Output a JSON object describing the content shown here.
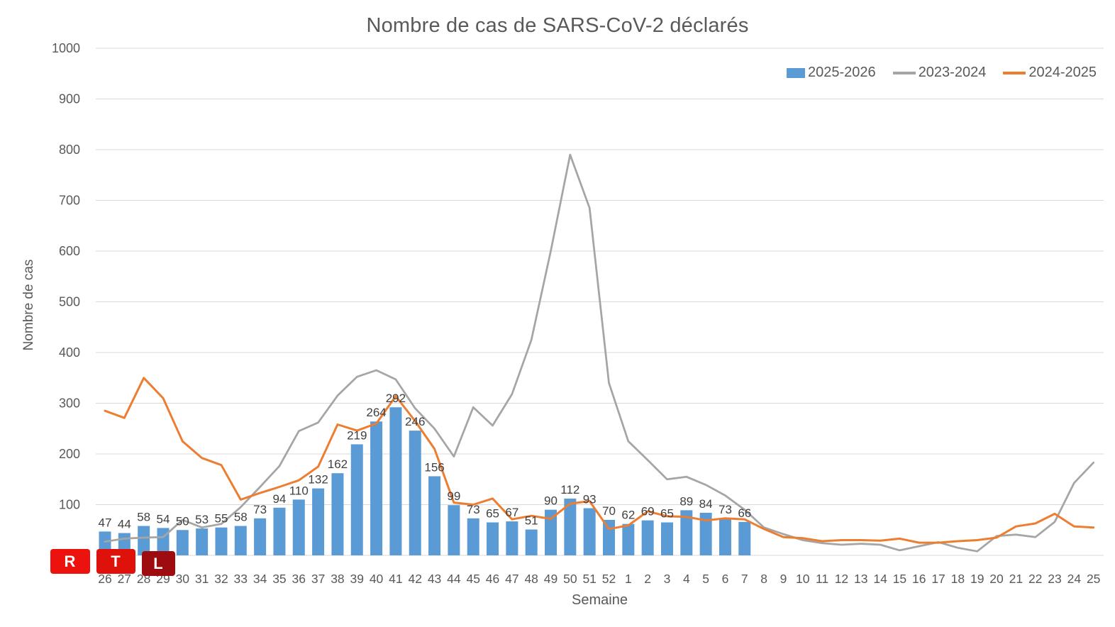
{
  "title": "Nombre de cas de SARS-CoV-2 déclarés",
  "legend": {
    "items": [
      {
        "label": "2025-2026",
        "marker": "bar-swatch",
        "color": "#5B9BD5"
      },
      {
        "label": "2023-2024",
        "marker": "line-swatch",
        "color": "#A5A5A5"
      },
      {
        "label": "2024-2025",
        "marker": "line-swatch",
        "color": "#ED7D31"
      }
    ]
  },
  "logo": {
    "name": "RTL",
    "blocks": [
      {
        "letter": "R",
        "color": "#EC130E"
      },
      {
        "letter": "T",
        "color": "#DF120B"
      },
      {
        "letter": "L",
        "color": "#9E0C10"
      }
    ]
  },
  "colors": {
    "bar": "#5B9BD5",
    "line_2023_2024": "#A5A5A5",
    "line_2024_2025": "#ED7D31",
    "gridline": "#D9D9D9",
    "axis_text": "#595959",
    "data_label": "#404040"
  },
  "chart_data": {
    "type": "bar",
    "subtype": "combo bar + 2 lines",
    "title": "Nombre de cas de SARS-CoV-2 déclarés",
    "xlabel": "Semaine",
    "ylabel": "Nombre de cas",
    "ylim": [
      0,
      1000
    ],
    "yticks": [
      100,
      200,
      300,
      400,
      500,
      600,
      700,
      800,
      900,
      1000
    ],
    "grid": "horizontal",
    "legend_position": "top-right",
    "categories": [
      "26",
      "27",
      "28",
      "29",
      "30",
      "31",
      "32",
      "33",
      "34",
      "35",
      "36",
      "37",
      "38",
      "39",
      "40",
      "41",
      "42",
      "43",
      "44",
      "45",
      "46",
      "47",
      "48",
      "49",
      "50",
      "51",
      "52",
      "1",
      "2",
      "3",
      "4",
      "5",
      "6",
      "7",
      "8",
      "9",
      "10",
      "11",
      "12",
      "13",
      "14",
      "15",
      "16",
      "17",
      "18",
      "19",
      "20",
      "21",
      "22",
      "23",
      "24",
      "25"
    ],
    "series": [
      {
        "name": "2025-2026",
        "type": "bar",
        "color": "#5B9BD5",
        "labels_shown": true,
        "values": [
          47,
          44,
          58,
          54,
          50,
          53,
          55,
          58,
          73,
          94,
          110,
          132,
          162,
          219,
          264,
          292,
          246,
          156,
          99,
          73,
          65,
          67,
          51,
          90,
          112,
          93,
          70,
          62,
          69,
          65,
          89,
          84,
          73,
          66,
          null,
          null,
          null,
          null,
          null,
          null,
          null,
          null,
          null,
          null,
          null,
          null,
          null,
          null,
          null,
          null,
          null,
          null
        ]
      },
      {
        "name": "2023-2024",
        "type": "line",
        "color": "#A5A5A5",
        "values": [
          27,
          33,
          35,
          36,
          70,
          55,
          62,
          95,
          135,
          176,
          245,
          262,
          315,
          352,
          365,
          347,
          290,
          250,
          195,
          292,
          256,
          318,
          425,
          600,
          790,
          685,
          340,
          225,
          188,
          150,
          155,
          139,
          118,
          90,
          55,
          42,
          30,
          24,
          21,
          23,
          21,
          10,
          18,
          26,
          15,
          8,
          38,
          41,
          36,
          66,
          143,
          183
        ]
      },
      {
        "name": "2024-2025",
        "type": "line",
        "color": "#ED7D31",
        "values": [
          285,
          271,
          350,
          310,
          225,
          192,
          178,
          110,
          123,
          135,
          148,
          175,
          258,
          246,
          260,
          314,
          265,
          210,
          104,
          100,
          112,
          71,
          78,
          72,
          102,
          107,
          52,
          59,
          87,
          77,
          76,
          69,
          73,
          71,
          52,
          36,
          34,
          28,
          30,
          30,
          29,
          33,
          25,
          25,
          28,
          30,
          35,
          57,
          63,
          82,
          57,
          55
        ]
      }
    ]
  }
}
